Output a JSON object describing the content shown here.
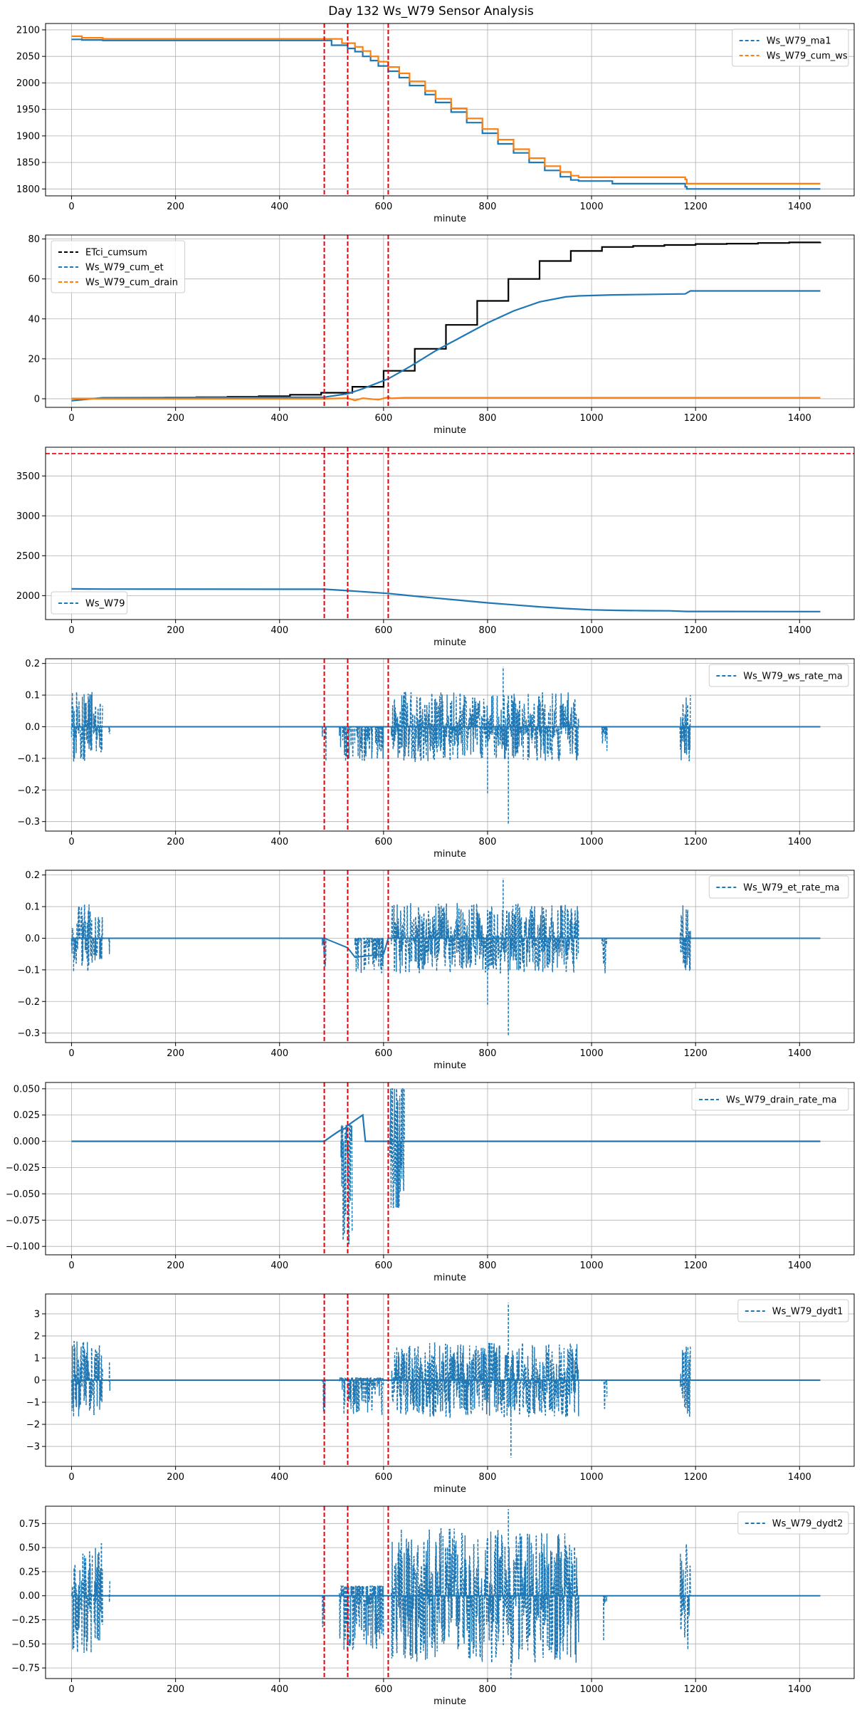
{
  "figure": {
    "title": "Day 132 Ws_W79 Sensor Analysis"
  },
  "chart_data": [
    {
      "type": "line",
      "xlabel": "minute",
      "ylabel": "",
      "xlim": [
        -50,
        1505
      ],
      "ylim": [
        1787,
        2112
      ],
      "xticks": [
        0,
        200,
        400,
        600,
        800,
        1000,
        1200,
        1400
      ],
      "yticks": [
        1800,
        1850,
        1900,
        1950,
        2000,
        2050,
        2100
      ],
      "ytick_labels": [
        "1800",
        "1850",
        "1900",
        "1950",
        "2000",
        "2050",
        "2100"
      ],
      "grid": true,
      "legend_position": "upper right",
      "legend_style": "dashed",
      "vlines": [
        486,
        531,
        609
      ],
      "hlines": [],
      "series": [
        {
          "name": "Ws_W79_ma1",
          "color": "#1f77b4",
          "style": "step",
          "x": [
            0,
            20,
            60,
            486,
            500,
            531,
            545,
            560,
            575,
            590,
            609,
            630,
            650,
            680,
            700,
            730,
            760,
            790,
            820,
            850,
            880,
            910,
            940,
            960,
            975,
            1040,
            1180,
            1183,
            1440
          ],
          "y": [
            2082,
            2081,
            2080,
            2080,
            2071,
            2065,
            2059,
            2050,
            2042,
            2032,
            2022,
            2010,
            1995,
            1978,
            1963,
            1945,
            1925,
            1905,
            1885,
            1868,
            1850,
            1835,
            1823,
            1817,
            1815,
            1810,
            1804,
            1800,
            1800
          ]
        },
        {
          "name": "Ws_W79_cum_ws",
          "color": "#ff7f0e",
          "style": "step",
          "x": [
            0,
            20,
            60,
            486,
            520,
            545,
            560,
            575,
            590,
            609,
            630,
            650,
            680,
            700,
            730,
            760,
            790,
            820,
            850,
            880,
            910,
            940,
            960,
            975,
            1040,
            1180,
            1183,
            1440
          ],
          "y": [
            2088,
            2085,
            2083,
            2083,
            2075,
            2068,
            2060,
            2050,
            2040,
            2030,
            2018,
            2003,
            1985,
            1970,
            1952,
            1933,
            1913,
            1893,
            1875,
            1858,
            1843,
            1832,
            1825,
            1822,
            1822,
            1818,
            1810,
            1810
          ]
        }
      ]
    },
    {
      "type": "line",
      "xlabel": "minute",
      "ylabel": "",
      "xlim": [
        -50,
        1505
      ],
      "ylim": [
        -4.3,
        82
      ],
      "xticks": [
        0,
        200,
        400,
        600,
        800,
        1000,
        1200,
        1400
      ],
      "yticks": [
        0,
        20,
        40,
        60,
        80
      ],
      "ytick_labels": [
        "0",
        "20",
        "40",
        "60",
        "80"
      ],
      "grid": true,
      "legend_position": "upper left",
      "legend_style": "dashed",
      "vlines": [
        486,
        531,
        609
      ],
      "hlines": [],
      "series": [
        {
          "name": "ETci_cumsum",
          "color": "#000000",
          "style": "step",
          "x": [
            0,
            60,
            120,
            180,
            240,
            300,
            360,
            420,
            480,
            540,
            600,
            660,
            720,
            780,
            840,
            900,
            960,
            1020,
            1080,
            1140,
            1200,
            1260,
            1320,
            1380,
            1440
          ],
          "y": [
            0,
            0.2,
            0.4,
            0.6,
            0.8,
            1.0,
            1.3,
            2.0,
            3.0,
            6.0,
            14.0,
            25.0,
            37.0,
            49.0,
            60.0,
            69.0,
            74.0,
            76.0,
            76.5,
            77.0,
            77.5,
            77.7,
            78.0,
            78.3,
            78.5
          ]
        },
        {
          "name": "Ws_W79_cum_et",
          "color": "#1f77b4",
          "style": "line",
          "x": [
            0,
            20,
            60,
            486,
            531,
            560,
            609,
            650,
            700,
            750,
            800,
            850,
            900,
            950,
            975,
            1040,
            1180,
            1190,
            1440
          ],
          "y": [
            -1,
            -0.5,
            0.5,
            0.8,
            2.5,
            5.0,
            10.0,
            16.0,
            24.0,
            31.0,
            38.0,
            44.0,
            48.5,
            51.0,
            51.5,
            52.0,
            52.5,
            54.0,
            54.0
          ]
        },
        {
          "name": "Ws_W79_cum_drain",
          "color": "#ff7f0e",
          "style": "line",
          "x": [
            0,
            60,
            486,
            531,
            545,
            560,
            590,
            609,
            615,
            640,
            1440
          ],
          "y": [
            0,
            0,
            0,
            0.3,
            -0.8,
            0.3,
            -0.5,
            0.8,
            0.2,
            0.5,
            0.5
          ]
        }
      ]
    },
    {
      "type": "line",
      "xlabel": "minute",
      "ylabel": "",
      "xlim": [
        -50,
        1505
      ],
      "ylim": [
        1700,
        3860
      ],
      "xticks": [
        0,
        200,
        400,
        600,
        800,
        1000,
        1200,
        1400
      ],
      "yticks": [
        2000,
        2500,
        3000,
        3500
      ],
      "ytick_labels": [
        "2000",
        "2500",
        "3000",
        "3500"
      ],
      "grid": true,
      "legend_position": "lower left",
      "legend_style": "dashed",
      "vlines": [
        486,
        531,
        609
      ],
      "hlines": [
        3780
      ],
      "series": [
        {
          "name": "Ws_W79",
          "color": "#1f77b4",
          "style": "line",
          "x": [
            0,
            60,
            486,
            531,
            609,
            650,
            700,
            750,
            800,
            850,
            900,
            950,
            1000,
            1050,
            1100,
            1150,
            1183,
            1440
          ],
          "y": [
            2085,
            2082,
            2080,
            2062,
            2028,
            2000,
            1970,
            1940,
            1910,
            1885,
            1860,
            1838,
            1822,
            1815,
            1812,
            1810,
            1802,
            1800
          ]
        }
      ]
    },
    {
      "type": "line",
      "xlabel": "minute",
      "ylabel": "",
      "xlim": [
        -50,
        1505
      ],
      "ylim": [
        -0.33,
        0.215
      ],
      "xticks": [
        0,
        200,
        400,
        600,
        800,
        1000,
        1200,
        1400
      ],
      "yticks": [
        -0.3,
        -0.2,
        -0.1,
        0.0,
        0.1,
        0.2
      ],
      "ytick_labels": [
        "−0.3",
        "−0.2",
        "−0.1",
        "0.0",
        "0.1",
        "0.2"
      ],
      "grid": true,
      "legend_position": "upper right",
      "legend_style": "dashed",
      "vlines": [
        486,
        531,
        609
      ],
      "hlines": [],
      "bursts": [
        [
          0,
          40,
          -0.11,
          0.11,
          0.11
        ],
        [
          42,
          60,
          -0.11,
          0.1,
          0.08
        ],
        [
          72,
          74,
          -0.06,
          0,
          0.06
        ],
        [
          482,
          490,
          -0.11,
          0,
          0.11
        ],
        [
          515,
          600,
          -0.11,
          0,
          0.11
        ],
        [
          615,
          975,
          -0.11,
          0.11,
          0.11
        ],
        [
          1020,
          1030,
          -0.11,
          0,
          0.11
        ],
        [
          1170,
          1190,
          -0.11,
          0.11,
          0.11
        ]
      ],
      "spikes": [
        [
          800,
          -0.21
        ],
        [
          830,
          0.19
        ],
        [
          840,
          -0.31
        ]
      ],
      "series": [
        {
          "name": "Ws_W79_ws_rate_ma",
          "color": "#1f77b4",
          "style": "baseline",
          "x": [
            0,
            1440
          ],
          "y": [
            0,
            0
          ]
        }
      ]
    },
    {
      "type": "line",
      "xlabel": "minute",
      "ylabel": "",
      "xlim": [
        -50,
        1505
      ],
      "ylim": [
        -0.33,
        0.215
      ],
      "xticks": [
        0,
        200,
        400,
        600,
        800,
        1000,
        1200,
        1400
      ],
      "yticks": [
        -0.3,
        -0.2,
        -0.1,
        0.0,
        0.1,
        0.2
      ],
      "ytick_labels": [
        "−0.3",
        "−0.2",
        "−0.1",
        "0.0",
        "0.1",
        "0.2"
      ],
      "grid": true,
      "legend_position": "upper right",
      "legend_style": "dashed",
      "vlines": [
        486,
        531,
        609
      ],
      "hlines": [],
      "bursts": [
        [
          0,
          40,
          -0.11,
          0.11,
          0.11
        ],
        [
          42,
          60,
          -0.11,
          0.1,
          0.08
        ],
        [
          72,
          74,
          -0.06,
          0,
          0.06
        ],
        [
          482,
          490,
          -0.11,
          0,
          0.11
        ],
        [
          545,
          600,
          -0.11,
          0,
          0.11
        ],
        [
          615,
          975,
          -0.11,
          0.11,
          0.11
        ],
        [
          1020,
          1030,
          -0.11,
          0,
          0.11
        ],
        [
          1170,
          1190,
          -0.11,
          0.11,
          0.11
        ]
      ],
      "spikes": [
        [
          800,
          -0.21
        ],
        [
          830,
          0.19
        ],
        [
          840,
          -0.31
        ]
      ],
      "series": [
        {
          "name": "Ws_W79_et_rate_ma",
          "color": "#1f77b4",
          "style": "baseline",
          "x": [
            0,
            486,
            531,
            545,
            600,
            609,
            1440
          ],
          "y": [
            0,
            0,
            -0.03,
            -0.06,
            -0.05,
            0,
            0
          ]
        }
      ]
    },
    {
      "type": "line",
      "xlabel": "minute",
      "ylabel": "",
      "xlim": [
        -50,
        1505
      ],
      "ylim": [
        -0.108,
        0.056
      ],
      "xticks": [
        0,
        200,
        400,
        600,
        800,
        1000,
        1200,
        1400
      ],
      "yticks": [
        -0.1,
        -0.075,
        -0.05,
        -0.025,
        0.0,
        0.025,
        0.05
      ],
      "ytick_labels": [
        "−0.100",
        "−0.075",
        "−0.050",
        "−0.025",
        "0.000",
        "0.025",
        "0.050"
      ],
      "grid": true,
      "legend_position": "upper right",
      "legend_style": "dashed",
      "vlines": [
        486,
        531,
        609
      ],
      "hlines": [],
      "bursts": [
        [
          518,
          540,
          -0.1,
          0.015,
          0.1
        ],
        [
          612,
          640,
          -0.063,
          0.05,
          0.1
        ]
      ],
      "spikes": [],
      "series": [
        {
          "name": "Ws_W79_drain_rate_ma",
          "color": "#1f77b4",
          "style": "line",
          "x": [
            0,
            60,
            486,
            500,
            515,
            525,
            531,
            545,
            560,
            565,
            609,
            1440
          ],
          "y": [
            0,
            0,
            0,
            0.005,
            0.01,
            0.012,
            0.015,
            0.02,
            0.025,
            0,
            0,
            0
          ]
        }
      ]
    },
    {
      "type": "line",
      "xlabel": "minute",
      "ylabel": "",
      "xlim": [
        -50,
        1505
      ],
      "ylim": [
        -3.9,
        3.9
      ],
      "xticks": [
        0,
        200,
        400,
        600,
        800,
        1000,
        1200,
        1400
      ],
      "yticks": [
        -3,
        -2,
        -1,
        0,
        1,
        2,
        3
      ],
      "ytick_labels": [
        "−3",
        "−2",
        "−1",
        "0",
        "1",
        "2",
        "3"
      ],
      "grid": true,
      "legend_position": "upper right",
      "legend_style": "dashed",
      "vlines": [
        486,
        531,
        609
      ],
      "hlines": [],
      "bursts": [
        [
          0,
          40,
          -2.0,
          2.0,
          1.8
        ],
        [
          42,
          60,
          -1.8,
          1.8,
          1.6
        ],
        [
          72,
          74,
          -1.0,
          1.0,
          1.0
        ],
        [
          482,
          490,
          -1.7,
          0,
          1.5
        ],
        [
          515,
          600,
          -1.8,
          0.1,
          1.6
        ],
        [
          615,
          975,
          -1.9,
          1.8,
          1.7
        ],
        [
          1020,
          1030,
          -2.2,
          0,
          2.0
        ],
        [
          1170,
          1190,
          -2.0,
          1.9,
          1.8
        ]
      ],
      "spikes": [
        [
          840,
          3.5
        ],
        [
          845,
          -3.5
        ]
      ],
      "series": [
        {
          "name": "Ws_W79_dydt1",
          "color": "#1f77b4",
          "style": "baseline",
          "x": [
            0,
            1440
          ],
          "y": [
            0,
            0
          ]
        }
      ]
    },
    {
      "type": "line",
      "xlabel": "minute",
      "ylabel": "",
      "xlim": [
        -50,
        1505
      ],
      "ylim": [
        -0.86,
        0.93
      ],
      "xticks": [
        0,
        200,
        400,
        600,
        800,
        1000,
        1200,
        1400
      ],
      "yticks": [
        -0.75,
        -0.5,
        -0.25,
        0.0,
        0.25,
        0.5,
        0.75
      ],
      "ytick_labels": [
        "−0.75",
        "−0.50",
        "−0.25",
        "0.00",
        "0.25",
        "0.50",
        "0.75"
      ],
      "grid": true,
      "legend_position": "upper right",
      "legend_style": "dashed",
      "vlines": [
        486,
        531,
        609
      ],
      "hlines": [],
      "bursts": [
        [
          0,
          40,
          -0.7,
          0.7,
          0.6
        ],
        [
          42,
          60,
          -0.65,
          0.65,
          0.55
        ],
        [
          72,
          74,
          -0.2,
          0.2,
          0.2
        ],
        [
          482,
          490,
          -0.6,
          0,
          0.6
        ],
        [
          515,
          600,
          -0.7,
          0.1,
          0.6
        ],
        [
          615,
          975,
          -0.75,
          0.75,
          0.7
        ],
        [
          1020,
          1030,
          -0.7,
          0,
          0.7
        ],
        [
          1170,
          1190,
          -0.7,
          0.68,
          0.65
        ]
      ],
      "spikes": [
        [
          840,
          0.9
        ],
        [
          845,
          -0.87
        ]
      ],
      "series": [
        {
          "name": "Ws_W79_dydt2",
          "color": "#1f77b4",
          "style": "baseline",
          "x": [
            0,
            1440
          ],
          "y": [
            0,
            0
          ]
        }
      ]
    }
  ]
}
